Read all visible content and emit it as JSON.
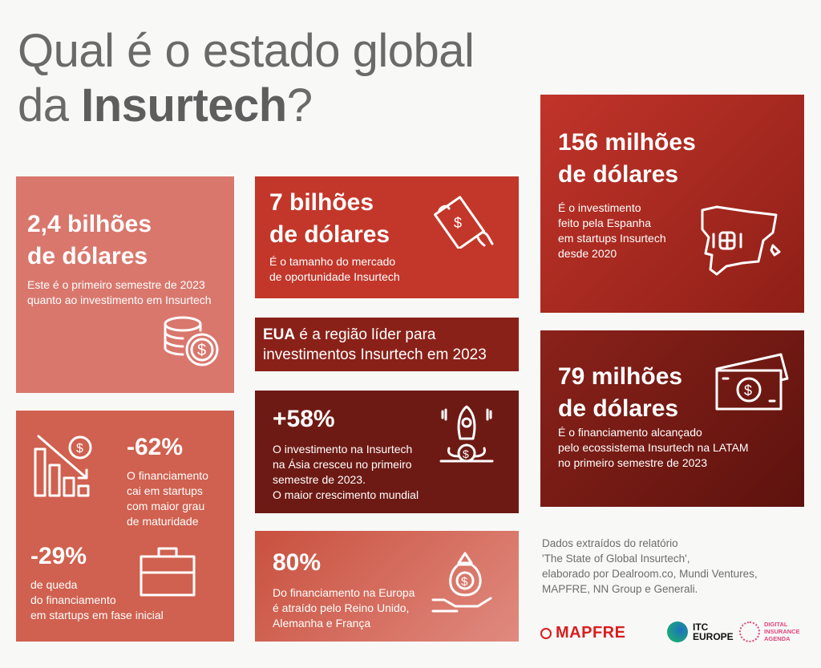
{
  "title": {
    "line1": "Qual é o estado global",
    "line2_prefix": "da ",
    "line2_bold": "Insurtech",
    "line2_suffix": "?"
  },
  "cards": {
    "a": {
      "headline1": "2,4 bilhões",
      "headline2": "de dólares",
      "text1": "Este é o primeiro semestre de 2023",
      "text2": "quanto ao investimento em Insurtech",
      "icon": "coins-dollar-icon"
    },
    "b": {
      "headline1": "7 bilhões",
      "headline2": "de dólares",
      "text1": "É o tamanho do mercado",
      "text2": "de oportunidade Insurtech",
      "icon": "flying-money-icon"
    },
    "c": {
      "bold": "EUA",
      "text1": " é a região líder para",
      "text2": "investimentos Insurtech em 2023"
    },
    "d": {
      "headline": "+58%",
      "lines": [
        "O investimento na Insurtech",
        "na Ásia cresceu no primeiro",
        "semestre de 2023.",
        "O maior crescimento mundial"
      ],
      "icon": "rocket-money-icon"
    },
    "e": {
      "headline": "80%",
      "lines": [
        "Do financiamento na Europa",
        "é atraído pelo Reino Unido,",
        "Alemanha e França"
      ],
      "icon": "money-bag-hand-icon"
    },
    "f": {
      "headline1": "-62%",
      "lines1": [
        "O financiamento",
        "cai em startups",
        "com maior grau",
        "de maturidade"
      ],
      "headline2": "-29%",
      "lines2": [
        "de queda",
        "do financiamento",
        "em startups em fase inicial"
      ],
      "icon1": "declining-chart-icon",
      "icon2": "briefcase-icon"
    },
    "g": {
      "headline1": "156 milhões",
      "headline2": "de dólares",
      "lines": [
        "É o investimento",
        "feito pela Espanha",
        "em startups Insurtech",
        "desde 2020"
      ],
      "icon": "spain-map-icon"
    },
    "h": {
      "headline1": "79 milhões",
      "headline2": "de dólares",
      "lines": [
        "É o financiamento alcançado",
        "pelo ecossistema Insurtech na LATAM",
        "no primeiro semestre de 2023"
      ],
      "icon": "banknotes-icon"
    }
  },
  "source": {
    "lines": [
      "Dados extraídos do relatório",
      "'The State of Global Insurtech',",
      "elaborado por Dealroom.co, Mundi Ventures,",
      "MAPFRE, NN Group e Generali."
    ]
  },
  "logos": {
    "mapfre": "MAPFRE",
    "itc1": "ITC",
    "itc2": "EUROPE",
    "dia1": "DIGITAL",
    "dia2": "INSURANCE",
    "dia3": "AGENDA"
  },
  "colors": {
    "pink": "#d9776d",
    "red": "#c2372a",
    "dark": "#7a1d16",
    "brand_red": "#d81e1e",
    "dia_pink": "#e0457e"
  }
}
